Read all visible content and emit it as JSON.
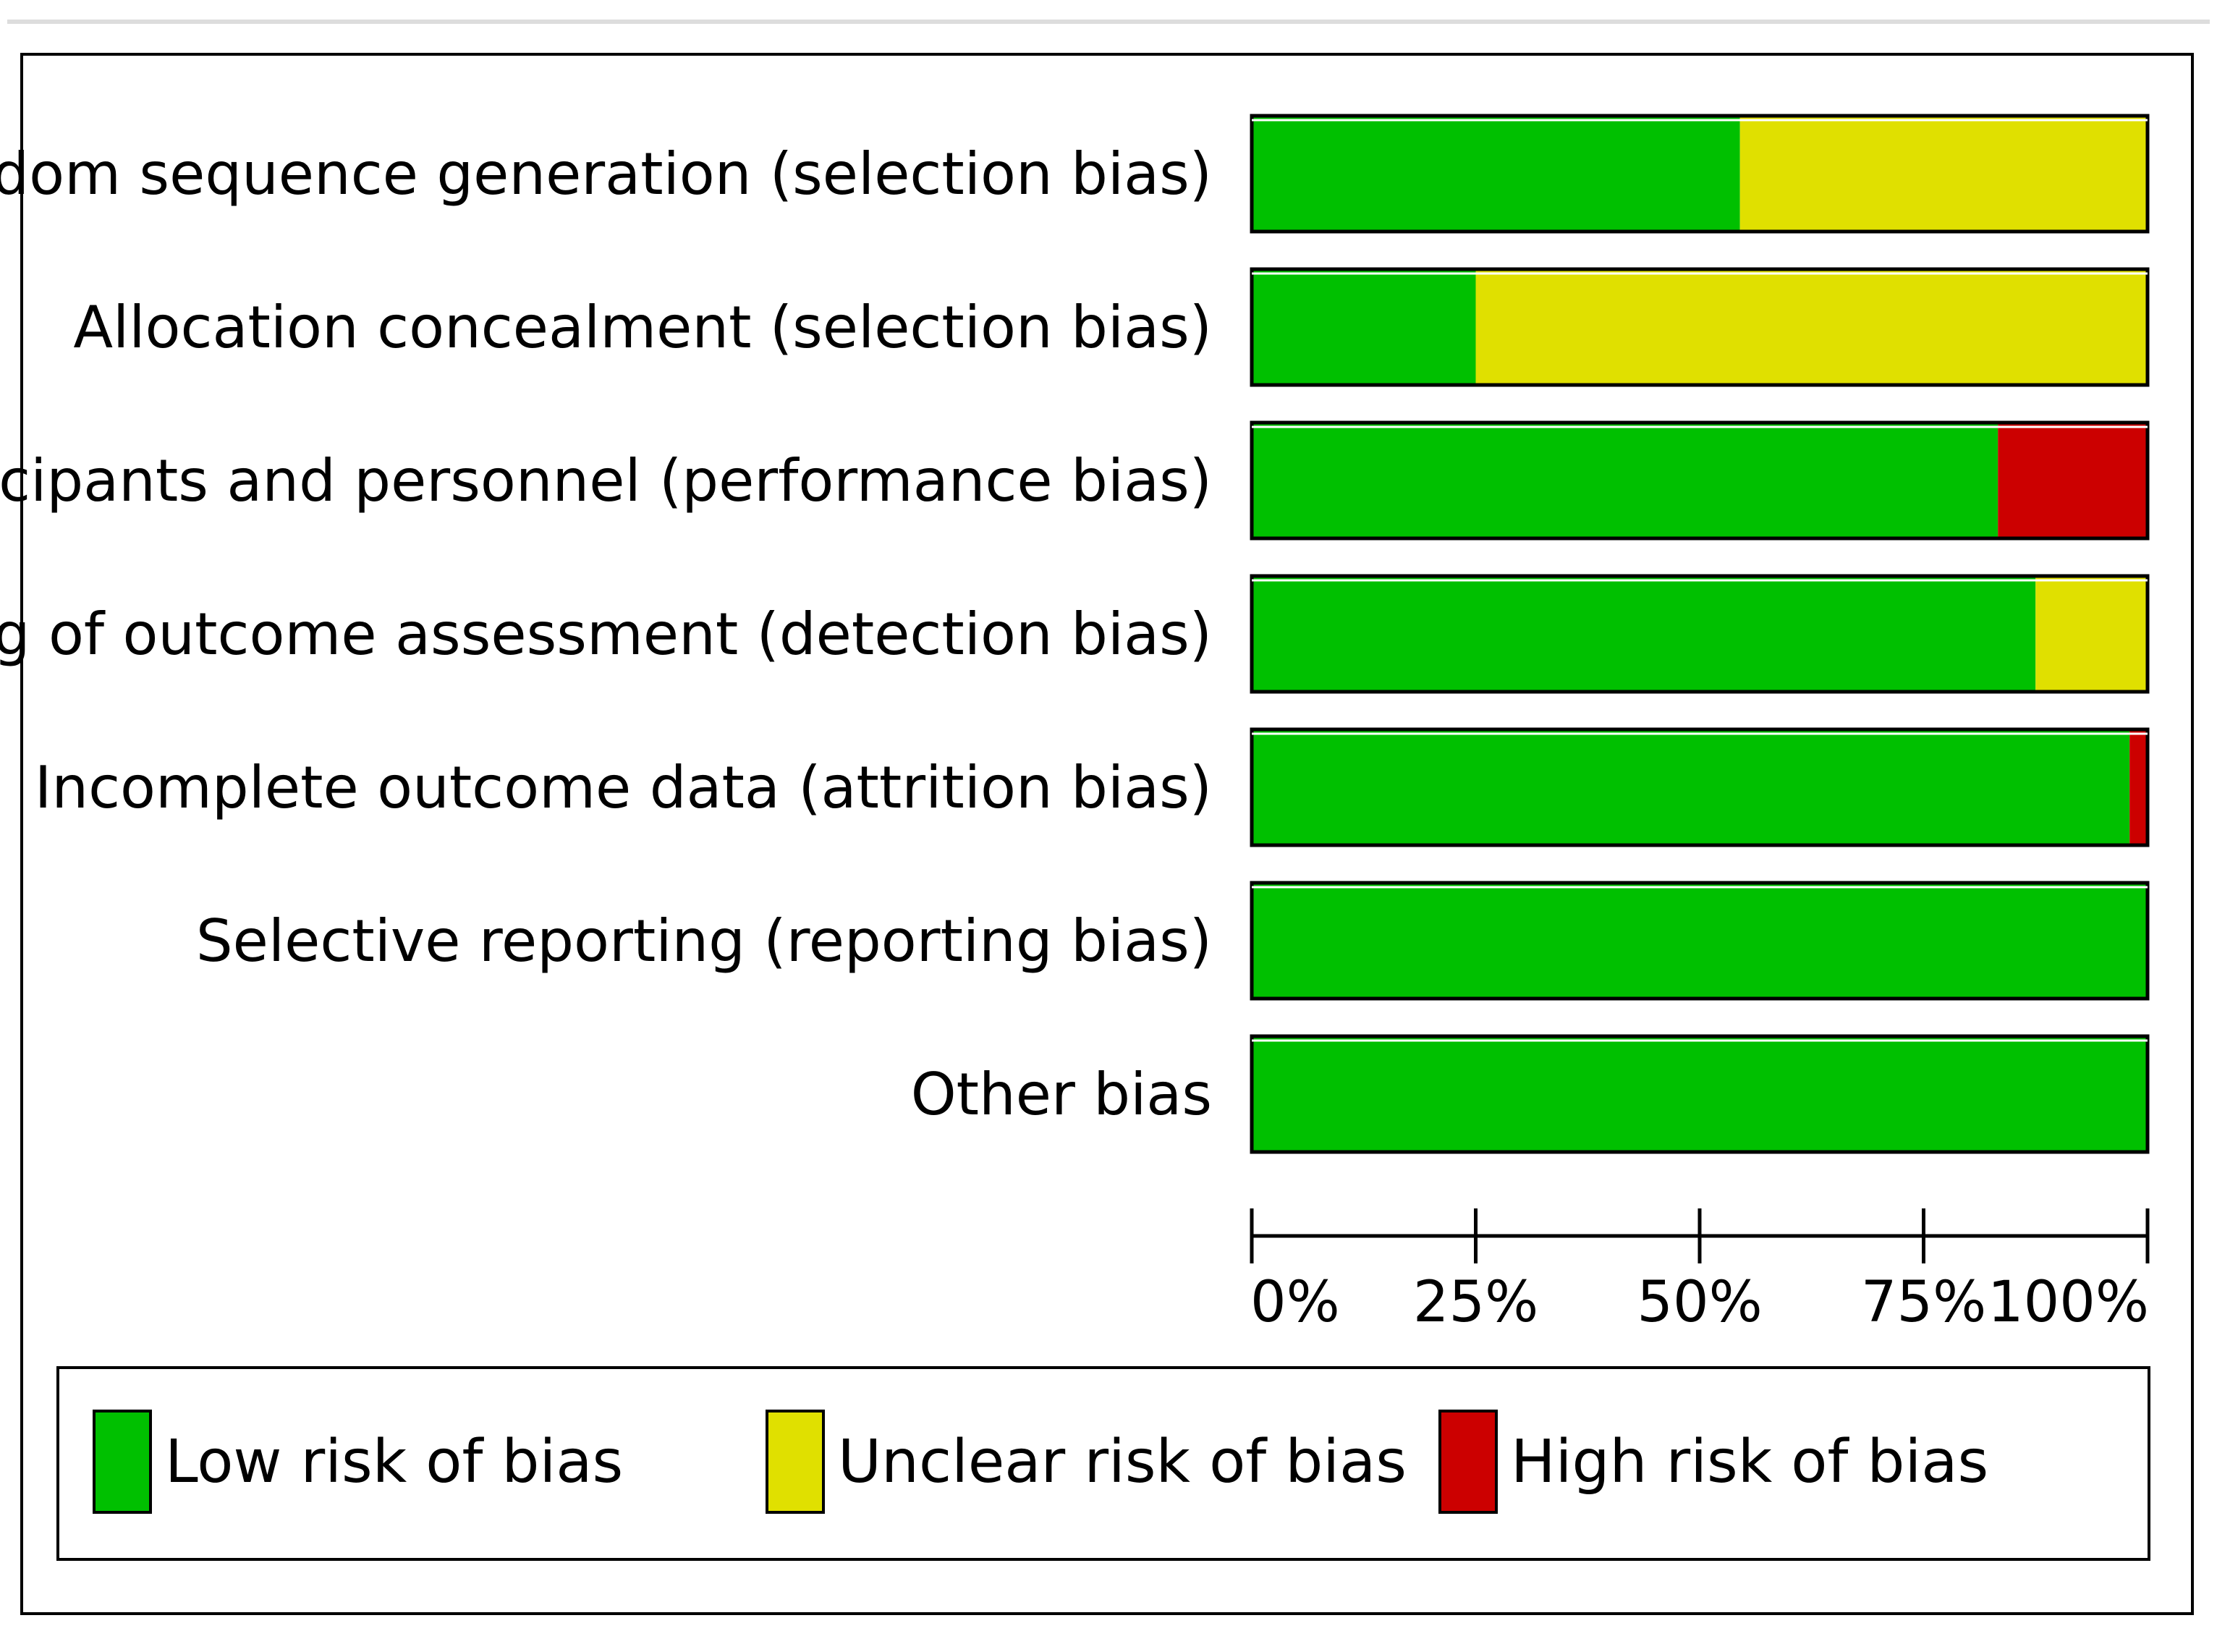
{
  "chart_data": {
    "type": "bar",
    "stacked": true,
    "orientation": "horizontal",
    "categories": [
      "Random sequence generation (selection bias)",
      "Allocation concealment (selection bias)",
      "Blinding of participants and personnel (performance bias)",
      "Blinding of outcome assessment (detection bias)",
      "Incomplete outcome data (attrition bias)",
      "Selective reporting (reporting bias)",
      "Other bias"
    ],
    "series": [
      {
        "name": "Low risk of bias",
        "color": "#00c000",
        "values": [
          54.5,
          25,
          83.3,
          87.5,
          98,
          100,
          100
        ]
      },
      {
        "name": "Unclear risk of bias",
        "color": "#e0e000",
        "values": [
          45.5,
          75,
          0,
          12.5,
          0,
          0,
          0
        ]
      },
      {
        "name": "High risk of bias",
        "color": "#cc0000",
        "values": [
          0,
          0,
          16.7,
          0,
          2,
          0,
          0
        ]
      }
    ],
    "xlim": [
      0,
      100
    ],
    "x_ticks": [
      "0%",
      "25%",
      "50%",
      "75%",
      "100%"
    ],
    "legend_position": "bottom",
    "title": "",
    "xlabel": "",
    "ylabel": ""
  }
}
